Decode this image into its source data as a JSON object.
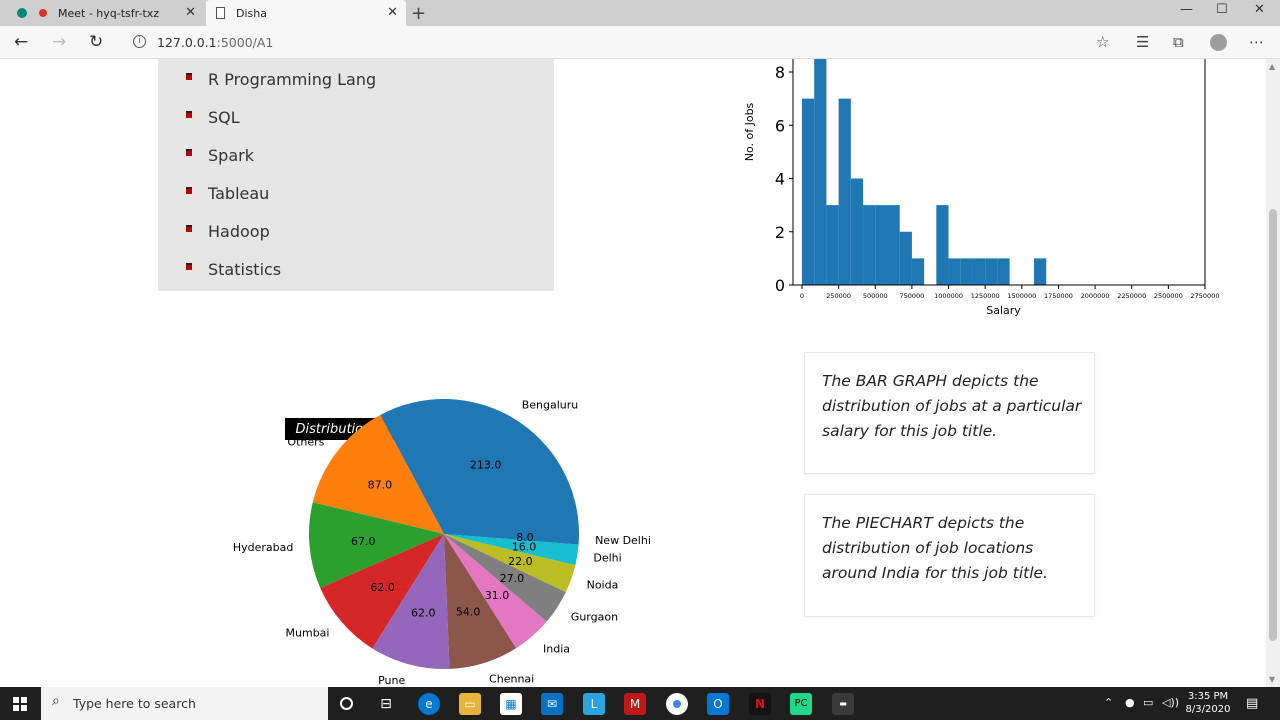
{
  "browser": {
    "tabs": [
      {
        "title": "Meet - hyq-tsfr-txz",
        "active": false
      },
      {
        "title": "Disha",
        "active": true
      }
    ],
    "url_host": "127.0.0.1",
    "url_path": ":5000/A1"
  },
  "skills": [
    "R Programming Lang",
    "SQL",
    "Spark",
    "Tableau",
    "Hadoop",
    "Statistics"
  ],
  "cards": [
    {
      "text": "The BAR GRAPH depicts the distribution of jobs at a particular salary for this job title."
    },
    {
      "text": "The PIECHART depicts the distribution of job locations around India for this job title."
    }
  ],
  "taskbar": {
    "search_placeholder": "Type here to search",
    "time": "3:35 PM",
    "date": "8/3/2020"
  },
  "chart_data": [
    {
      "type": "bar",
      "title": "",
      "xlabel": "Salary",
      "ylabel": "No. of Jobs",
      "xlim": [
        0,
        2750000
      ],
      "ylim": [
        0,
        8
      ],
      "yticks": [
        0,
        2,
        4,
        6,
        8
      ],
      "xticks": [
        "0",
        "250000",
        "500000",
        "750000",
        "1000000",
        "1250000",
        "1500000",
        "1750000",
        "2000000",
        "2250000",
        "2500000",
        "2750000"
      ],
      "bin_width": 83333,
      "bins": [
        {
          "start": 0,
          "count": 7
        },
        {
          "start": 83333,
          "count": 9
        },
        {
          "start": 166667,
          "count": 3
        },
        {
          "start": 250000,
          "count": 7
        },
        {
          "start": 333333,
          "count": 4
        },
        {
          "start": 416667,
          "count": 3
        },
        {
          "start": 500000,
          "count": 3
        },
        {
          "start": 583333,
          "count": 3
        },
        {
          "start": 666667,
          "count": 2
        },
        {
          "start": 750000,
          "count": 1
        },
        {
          "start": 916667,
          "count": 3
        },
        {
          "start": 1000000,
          "count": 1
        },
        {
          "start": 1083333,
          "count": 1
        },
        {
          "start": 1166667,
          "count": 1
        },
        {
          "start": 1250000,
          "count": 1
        },
        {
          "start": 1333333,
          "count": 1
        },
        {
          "start": 1583333,
          "count": 1
        }
      ],
      "color": "#1f77b4"
    },
    {
      "type": "pie",
      "title": "Distribution of job locations",
      "slices": [
        {
          "label": "Bengaluru",
          "value": 213.0,
          "color": "#1f77b4"
        },
        {
          "label": "Others",
          "value": 87.0,
          "color": "#ff7f0e"
        },
        {
          "label": "Hyderabad",
          "value": 67.0,
          "color": "#2ca02c"
        },
        {
          "label": "Mumbai",
          "value": 62.0,
          "color": "#d62728"
        },
        {
          "label": "Pune",
          "value": 62.0,
          "color": "#9467bd"
        },
        {
          "label": "Chennai",
          "value": 54.0,
          "color": "#8c564b"
        },
        {
          "label": "India",
          "value": 31.0,
          "color": "#e377c2"
        },
        {
          "label": "Gurgaon",
          "value": 27.0,
          "color": "#7f7f7f"
        },
        {
          "label": "Noida",
          "value": 22.0,
          "color": "#bcbd22"
        },
        {
          "label": "Delhi",
          "value": 16.0,
          "color": "#17becf"
        },
        {
          "label": "New Delhi",
          "value": 8.0,
          "color": "#1f77b4"
        }
      ]
    }
  ]
}
